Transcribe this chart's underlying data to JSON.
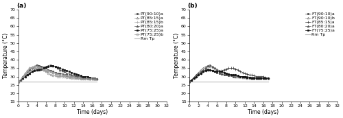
{
  "panel_a": {
    "label": "(a)",
    "series": [
      {
        "name": "PT(90:10)a",
        "marker": "s",
        "markersize": 2.0,
        "color": "#444444",
        "linestyle": "-",
        "linewidth": 0.5,
        "markerfacecolor": "#444444",
        "markeredgecolor": "#444444",
        "x": [
          0,
          0.5,
          1,
          1.5,
          2,
          2.5,
          3,
          3.5,
          4,
          4.5,
          5,
          5.5,
          6,
          6.5,
          7,
          7.5,
          8,
          8.5,
          9,
          9.5,
          10,
          10.5,
          11,
          11.5,
          12,
          12.5,
          13,
          13.5,
          14,
          14.5,
          15,
          15.5,
          16,
          16.5,
          17
        ],
        "y": [
          27,
          28,
          30,
          31,
          33,
          34,
          35,
          36,
          37,
          36.5,
          36,
          35.5,
          35,
          34,
          33.5,
          33,
          32.5,
          32,
          32,
          31.5,
          31,
          30.5,
          30,
          30,
          30,
          29.5,
          29.5,
          29,
          29,
          29,
          29,
          28.5,
          28.5,
          28.5,
          28.5
        ]
      },
      {
        "name": "PT(85:15)a",
        "marker": "^",
        "markersize": 2.0,
        "color": "#888888",
        "linestyle": "-",
        "linewidth": 0.5,
        "markerfacecolor": "none",
        "markeredgecolor": "#888888",
        "x": [
          0,
          0.5,
          1,
          1.5,
          2,
          2.5,
          3,
          3.5,
          4,
          4.5,
          5,
          5.5,
          6,
          6.5,
          7,
          7.5,
          8,
          8.5,
          9,
          9.5,
          10,
          10.5,
          11,
          11.5,
          12,
          12.5,
          13,
          13.5,
          14,
          14.5,
          15,
          15.5,
          16,
          16.5,
          17
        ],
        "y": [
          27,
          28,
          29,
          31,
          32,
          33,
          34,
          35,
          35,
          35,
          34.5,
          34,
          33.5,
          33,
          33,
          32.5,
          32,
          31.5,
          31,
          31,
          31,
          30.5,
          30,
          30,
          30,
          29.5,
          29.5,
          29,
          29,
          29,
          29,
          28.5,
          28.5,
          28.5,
          28.5
        ]
      },
      {
        "name": "PT(85:15)b",
        "marker": "+",
        "markersize": 3.0,
        "color": "#aaaaaa",
        "linestyle": "-",
        "linewidth": 0.5,
        "markerfacecolor": "#aaaaaa",
        "markeredgecolor": "#aaaaaa",
        "x": [
          0,
          0.5,
          1,
          1.5,
          2,
          2.5,
          3,
          3.5,
          4,
          4.5,
          5,
          5.5,
          6,
          6.5,
          7,
          7.5,
          8,
          8.5,
          9,
          9.5,
          10,
          10.5,
          11,
          11.5,
          12,
          12.5,
          13,
          13.5,
          14,
          14.5,
          15,
          15.5,
          16,
          16.5,
          17
        ],
        "y": [
          27,
          28,
          30,
          32,
          33.5,
          35,
          35.5,
          36,
          36,
          35.5,
          35,
          34.5,
          34,
          33.5,
          33,
          32.5,
          32,
          31.5,
          31,
          31,
          31,
          30.5,
          30,
          30,
          30,
          29.5,
          29,
          29,
          29,
          29,
          29,
          28.5,
          28.5,
          28.5,
          28.5
        ]
      },
      {
        "name": "PT(80:20)a",
        "marker": "^",
        "markersize": 2.0,
        "color": "#555555",
        "linestyle": "-",
        "linewidth": 0.5,
        "markerfacecolor": "#555555",
        "markeredgecolor": "#555555",
        "x": [
          0,
          0.5,
          1,
          1.5,
          2,
          2.5,
          3,
          3.5,
          4,
          4.5,
          5,
          5.5,
          6,
          6.5,
          7,
          7.5,
          8,
          8.5,
          9,
          9.5,
          10,
          10.5,
          11,
          11.5,
          12,
          12.5,
          13,
          13.5,
          14,
          14.5,
          15,
          15.5,
          16,
          16.5,
          17
        ],
        "y": [
          27,
          28,
          29,
          30,
          31,
          32,
          33,
          34,
          34,
          34.5,
          35,
          35.5,
          36,
          36.5,
          37,
          36.5,
          36,
          35,
          34,
          33.5,
          33,
          32,
          31.5,
          31,
          31,
          30.5,
          30.5,
          30,
          29.5,
          29.5,
          29,
          29,
          29,
          28.5,
          28.5
        ]
      },
      {
        "name": "PT(75:25)a",
        "marker": "s",
        "markersize": 2.0,
        "color": "#111111",
        "linestyle": "-",
        "linewidth": 0.5,
        "markerfacecolor": "#111111",
        "markeredgecolor": "#111111",
        "x": [
          0,
          0.5,
          1,
          1.5,
          2,
          2.5,
          3,
          3.5,
          4,
          4.5,
          5,
          5.5,
          6,
          6.5,
          7,
          7.5,
          8,
          8.5,
          9,
          9.5,
          10,
          10.5,
          11,
          11.5,
          12,
          12.5,
          13,
          13.5,
          14,
          14.5,
          15,
          15.5,
          16,
          16.5,
          17
        ],
        "y": [
          27,
          28,
          29,
          30,
          31,
          32,
          33,
          33.5,
          34,
          34,
          34.5,
          35,
          35.5,
          36,
          36.5,
          36.5,
          36,
          35.5,
          35,
          34.5,
          34,
          33.5,
          33,
          32.5,
          32,
          31.5,
          31,
          30.5,
          30,
          30,
          30,
          29.5,
          29,
          29,
          28.5
        ]
      },
      {
        "name": "PT(75:25)b",
        "marker": "o",
        "markersize": 2.0,
        "color": "#999999",
        "linestyle": "-",
        "linewidth": 0.5,
        "markerfacecolor": "none",
        "markeredgecolor": "#999999",
        "x": [
          0,
          0.5,
          1,
          1.5,
          2,
          2.5,
          3,
          3.5,
          4,
          4.5,
          5,
          5.5,
          6,
          6.5,
          7,
          7.5,
          8,
          8.5,
          9,
          9.5,
          10,
          10.5,
          11,
          11.5,
          12,
          12.5,
          13,
          13.5,
          14,
          14.5,
          15,
          15.5,
          16,
          16.5,
          17
        ],
        "y": [
          27,
          28,
          30,
          32,
          33.5,
          35,
          35.5,
          36,
          36,
          35.5,
          35,
          34,
          33,
          32,
          31,
          30.5,
          30.5,
          30,
          30,
          30,
          30,
          29.5,
          29.5,
          29,
          29,
          29,
          29,
          28.5,
          28.5,
          28.5,
          28.5,
          28.5,
          28.5,
          28.5,
          28.5
        ]
      },
      {
        "name": "Rm Tp",
        "marker": "None",
        "markersize": 0,
        "color": "#bbbbbb",
        "linestyle": "-",
        "linewidth": 0.8,
        "markerfacecolor": "none",
        "markeredgecolor": "#bbbbbb",
        "x": [
          0,
          0.5,
          1,
          1.5,
          2,
          2.5,
          3,
          3.5,
          4,
          4.5,
          5,
          5.5,
          6,
          6.5,
          7,
          7.5,
          8,
          8.5,
          9,
          9.5,
          10,
          10.5,
          11,
          11.5,
          12,
          12.5,
          13,
          13.5,
          14,
          14.5,
          15,
          15.5,
          16,
          16.5,
          17
        ],
        "y": [
          27,
          27,
          27,
          27,
          27,
          27,
          27,
          27,
          27,
          27,
          27,
          27,
          27,
          27,
          27,
          27,
          27,
          27,
          27,
          27,
          27,
          27,
          27,
          27,
          27,
          27,
          27,
          27,
          27,
          27,
          27,
          27,
          27,
          27,
          27
        ]
      }
    ]
  },
  "panel_b": {
    "label": "(b)",
    "series": [
      {
        "name": "FT(90:10)a",
        "marker": "s",
        "markersize": 2.0,
        "color": "#444444",
        "linestyle": "-",
        "linewidth": 0.5,
        "markerfacecolor": "#444444",
        "markeredgecolor": "#444444",
        "x": [
          0,
          0.5,
          1,
          1.5,
          2,
          2.5,
          3,
          3.5,
          4,
          4.5,
          5,
          5.5,
          6,
          6.5,
          7,
          7.5,
          8,
          8.5,
          9,
          9.5,
          10,
          10.5,
          11,
          11.5,
          12,
          12.5,
          13,
          13.5,
          14,
          14.5,
          15,
          15.5,
          16,
          16.5,
          17
        ],
        "y": [
          27,
          28,
          29,
          30,
          31,
          32,
          33,
          34,
          34.5,
          34,
          33.5,
          33,
          32.5,
          32,
          31.5,
          31,
          31,
          30.5,
          30.5,
          30,
          30,
          30,
          30,
          30,
          30,
          30,
          29.5,
          29.5,
          29.5,
          29,
          29,
          29,
          29,
          29,
          29
        ]
      },
      {
        "name": "FT(90:10)b",
        "marker": "^",
        "markersize": 2.0,
        "color": "#888888",
        "linestyle": "-",
        "linewidth": 0.5,
        "markerfacecolor": "none",
        "markeredgecolor": "#888888",
        "x": [
          0,
          0.5,
          1,
          1.5,
          2,
          2.5,
          3,
          3.5,
          4,
          4.5,
          5,
          5.5,
          6,
          6.5,
          7,
          7.5,
          8,
          8.5,
          9,
          9.5,
          10,
          10.5,
          11,
          11.5,
          12,
          12.5,
          13,
          13.5,
          14,
          14.5,
          15,
          15.5,
          16,
          16.5,
          17
        ],
        "y": [
          27,
          28,
          29.5,
          31,
          32.5,
          34,
          35,
          36,
          36.5,
          36,
          35.5,
          35,
          34.5,
          33.5,
          33,
          32.5,
          32,
          31.5,
          31,
          30.5,
          30,
          30,
          30,
          29.5,
          29.5,
          29,
          29,
          29,
          29,
          29,
          29,
          29,
          29,
          29,
          29
        ]
      },
      {
        "name": "FT(85:15)a",
        "marker": "+",
        "markersize": 3.0,
        "color": "#333333",
        "linestyle": "-",
        "linewidth": 0.5,
        "markerfacecolor": "#333333",
        "markeredgecolor": "#333333",
        "x": [
          0,
          0.5,
          1,
          1.5,
          2,
          2.5,
          3,
          3.5,
          4,
          4.5,
          5,
          5.5,
          6,
          6.5,
          7,
          7.5,
          8,
          8.5,
          9,
          9.5,
          10,
          10.5,
          11,
          11.5,
          12,
          12.5,
          13,
          13.5,
          14,
          14.5,
          15,
          15.5,
          16,
          16.5,
          17
        ],
        "y": [
          27,
          28,
          29,
          30,
          31,
          32,
          33,
          33.5,
          34,
          34,
          33.5,
          33,
          33,
          33,
          33.5,
          34,
          34.5,
          35,
          35,
          35,
          34.5,
          34,
          33,
          32.5,
          32,
          31.5,
          31,
          31,
          30.5,
          30,
          30,
          30,
          30,
          29.5,
          29
        ]
      },
      {
        "name": "FT(80:20)a",
        "marker": "^",
        "markersize": 2.0,
        "color": "#555555",
        "linestyle": "-",
        "linewidth": 0.5,
        "markerfacecolor": "#555555",
        "markeredgecolor": "#555555",
        "x": [
          0,
          0.5,
          1,
          1.5,
          2,
          2.5,
          3,
          3.5,
          4,
          4.5,
          5,
          5.5,
          6,
          6.5,
          7,
          7.5,
          8,
          8.5,
          9,
          9.5,
          10,
          10.5,
          11,
          11.5,
          12,
          12.5,
          13,
          13.5,
          14,
          14.5,
          15,
          15.5,
          16,
          16.5,
          17
        ],
        "y": [
          27,
          28,
          29.5,
          31,
          32,
          33,
          34,
          35,
          36.5,
          37,
          36,
          35,
          34,
          33.5,
          33,
          32.5,
          32,
          31.5,
          31,
          31,
          31,
          30.5,
          30,
          30,
          30,
          29.5,
          29.5,
          29,
          29,
          29,
          29,
          29,
          29,
          29,
          29
        ]
      },
      {
        "name": "FT(75:25)a",
        "marker": "s",
        "markersize": 2.0,
        "color": "#111111",
        "linestyle": "-",
        "linewidth": 0.5,
        "markerfacecolor": "#111111",
        "markeredgecolor": "#111111",
        "x": [
          0,
          0.5,
          1,
          1.5,
          2,
          2.5,
          3,
          3.5,
          4,
          4.5,
          5,
          5.5,
          6,
          6.5,
          7,
          7.5,
          8,
          8.5,
          9,
          9.5,
          10,
          10.5,
          11,
          11.5,
          12,
          12.5,
          13,
          13.5,
          14,
          14.5,
          15,
          15.5,
          16,
          16.5,
          17
        ],
        "y": [
          27,
          28,
          29,
          30,
          31,
          32,
          33,
          33.5,
          34,
          34,
          33.5,
          33,
          33,
          33,
          33,
          32.5,
          32,
          31.5,
          31,
          31,
          31,
          30.5,
          30,
          30,
          30,
          29.5,
          29.5,
          29,
          29,
          29,
          29,
          29,
          29,
          29,
          29
        ]
      },
      {
        "name": "Rm Tp",
        "marker": "None",
        "markersize": 0,
        "color": "#bbbbbb",
        "linestyle": "-",
        "linewidth": 0.8,
        "markerfacecolor": "none",
        "markeredgecolor": "#bbbbbb",
        "x": [
          0,
          0.5,
          1,
          1.5,
          2,
          2.5,
          3,
          3.5,
          4,
          4.5,
          5,
          5.5,
          6,
          6.5,
          7,
          7.5,
          8,
          8.5,
          9,
          9.5,
          10,
          10.5,
          11,
          11.5,
          12,
          12.5,
          13,
          13.5,
          14,
          14.5,
          15,
          15.5,
          16,
          16.5,
          17
        ],
        "y": [
          27,
          27,
          27,
          27,
          27,
          27,
          27,
          27,
          27,
          27,
          27,
          27,
          27,
          27,
          27,
          27,
          27,
          27,
          27,
          27,
          27,
          27,
          27,
          27,
          27,
          27,
          27,
          27,
          27,
          27,
          27,
          27,
          27,
          27,
          27
        ]
      }
    ]
  },
  "ylabel": "Temperature (°C)",
  "xlabel": "Time (days)",
  "ylim": [
    15,
    70
  ],
  "yticks": [
    15,
    20,
    25,
    30,
    35,
    40,
    45,
    50,
    55,
    60,
    65,
    70
  ],
  "xlim": [
    0,
    32
  ],
  "xticks": [
    0,
    2,
    4,
    6,
    8,
    10,
    12,
    14,
    16,
    18,
    20,
    22,
    24,
    26,
    28,
    30,
    32
  ],
  "legend_fontsize": 4.5,
  "axis_fontsize": 5.5,
  "tick_fontsize": 4.5,
  "title_fontsize": 6.5
}
